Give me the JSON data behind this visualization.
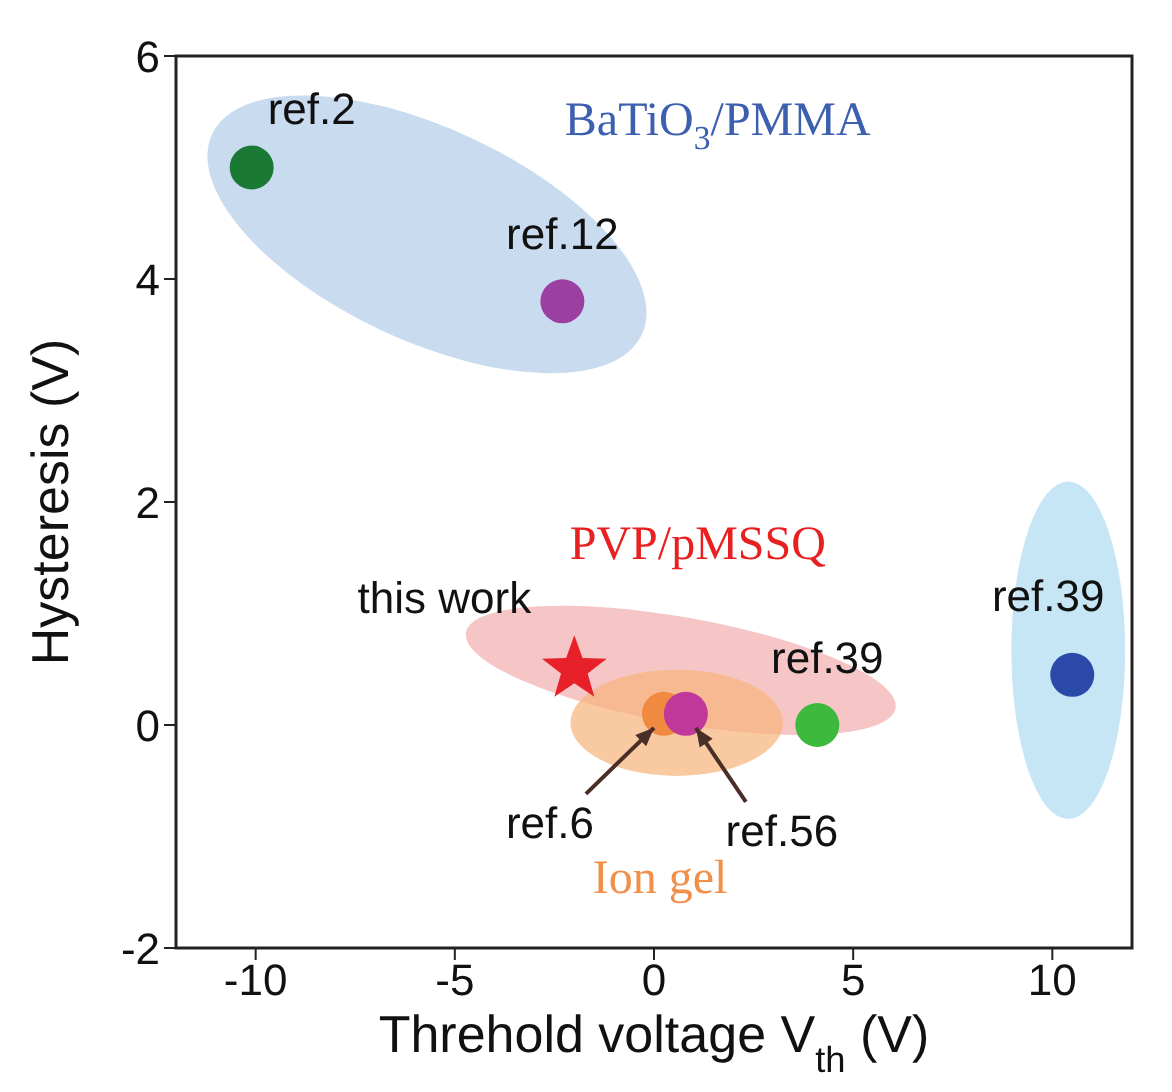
{
  "chart_data": {
    "type": "scatter",
    "xlabel": "Threhold voltage V$_{th}$ (V)",
    "ylabel": "Hysteresis (V)",
    "xlim": [
      -12,
      12
    ],
    "xticks": [
      -10,
      -5,
      0,
      5,
      10
    ],
    "ylim": [
      -2,
      6
    ],
    "yticks": [
      -2,
      0,
      2,
      4,
      6
    ],
    "series": [
      {
        "marker": "circle",
        "x": [
          -10.1,
          -2.3,
          0.25,
          0.8,
          4.1,
          10.5
        ],
        "values": [
          5.0,
          3.8,
          0.1,
          0.1,
          0.0,
          0.45
        ],
        "colors": [
          "#1a7a35",
          "#9b3fa0",
          "#f08a40",
          "#c0399a",
          "#3dba3d",
          "#2a49a8"
        ]
      },
      {
        "marker": "star",
        "x": [
          -2.0
        ],
        "values": [
          0.5
        ],
        "color": "#e8202a"
      }
    ],
    "annotations": [
      "BaTiO$_{3}$/PMMA",
      "PVP/pMSSQ",
      "Ion gel",
      {
        "text": "ref.2",
        "x": -10.1,
        "y": 5.0
      },
      {
        "text": "ref.12",
        "x": -2.3,
        "y": 3.8
      },
      {
        "text": "this work",
        "x": -2.0,
        "y": 0.5
      },
      {
        "text": "ref.6",
        "x": 0.25,
        "y": 0.1
      },
      {
        "text": "ref.56",
        "x": 0.8,
        "y": 0.1
      },
      {
        "text": "ref.39",
        "x": 4.1,
        "y": 0.0
      },
      {
        "text": "ref.39",
        "x": 10.5,
        "y": 0.45
      }
    ]
  }
}
